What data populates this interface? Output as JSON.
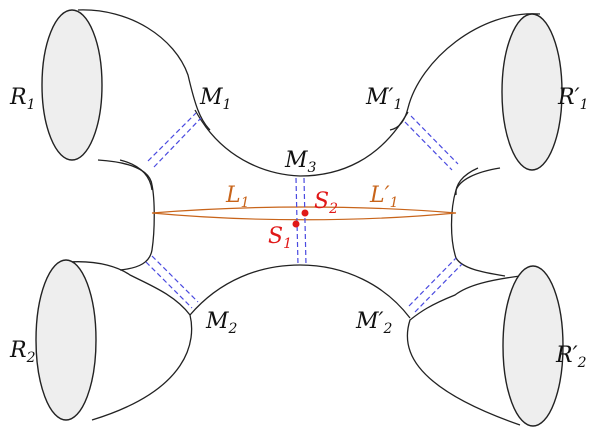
{
  "colors": {
    "outline": "#222222",
    "region_fill": "#eeeeee",
    "dashed_connector": "#4a4ae0",
    "point": "#e01818",
    "loop": "#c8641a"
  },
  "labels": {
    "R1": {
      "base": "R",
      "sub": "1",
      "prime": ""
    },
    "R2": {
      "base": "R",
      "sub": "2",
      "prime": ""
    },
    "R1p": {
      "base": "R",
      "sub": "1",
      "prime": "′"
    },
    "R2p": {
      "base": "R",
      "sub": "2",
      "prime": "′"
    },
    "M1": {
      "base": "M",
      "sub": "1",
      "prime": ""
    },
    "M2": {
      "base": "M",
      "sub": "2",
      "prime": ""
    },
    "M3": {
      "base": "M",
      "sub": "3",
      "prime": ""
    },
    "M1p": {
      "base": "M",
      "sub": "1",
      "prime": "′"
    },
    "M2p": {
      "base": "M",
      "sub": "2",
      "prime": "′"
    },
    "L1": {
      "base": "L",
      "sub": "1",
      "prime": ""
    },
    "L1p": {
      "base": "L",
      "sub": "1",
      "prime": "′"
    },
    "S1": {
      "base": "S",
      "sub": "1",
      "prime": ""
    },
    "S2": {
      "base": "S",
      "sub": "2",
      "prime": ""
    }
  }
}
